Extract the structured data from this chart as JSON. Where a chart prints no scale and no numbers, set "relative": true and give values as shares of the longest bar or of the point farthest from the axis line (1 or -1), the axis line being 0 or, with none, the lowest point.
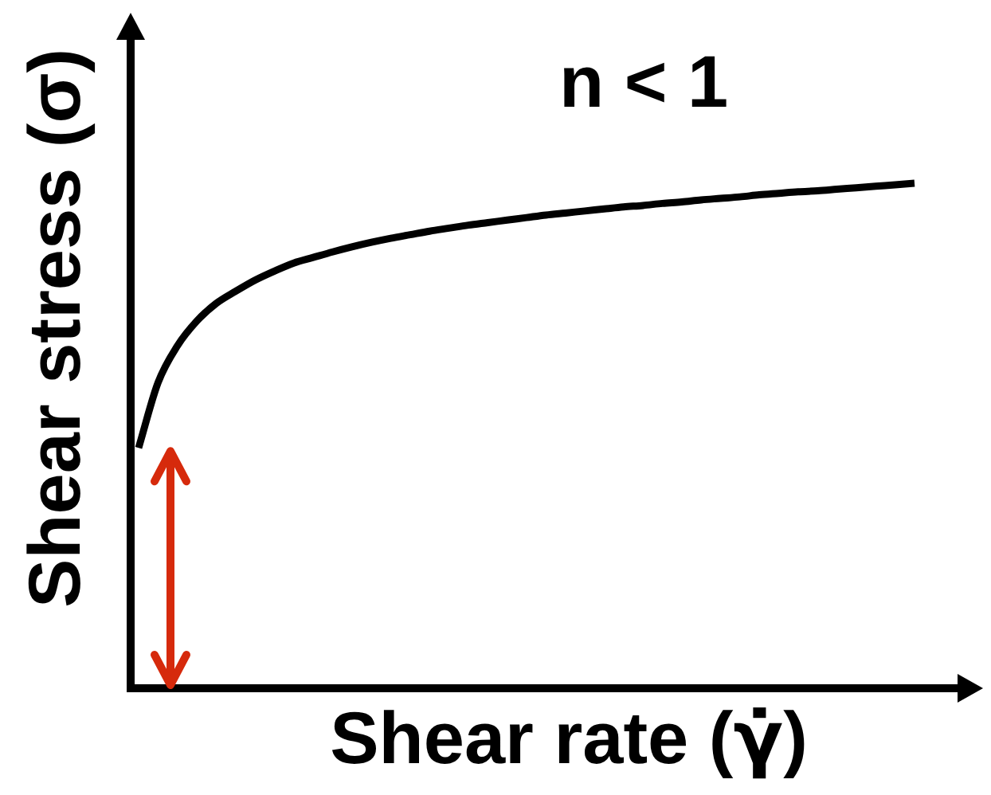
{
  "chart_data": {
    "type": "line",
    "xlabel": "Shear rate (γ̇)",
    "ylabel": "Shear stress (σ)",
    "annotations": [
      "n < 1"
    ],
    "relative": true,
    "marker": "none",
    "categories": [
      null,
      null,
      null,
      null,
      null,
      null,
      null,
      null,
      null,
      null,
      null,
      null,
      null,
      null,
      null,
      null,
      null,
      null,
      null,
      null,
      null,
      null,
      null,
      null,
      null,
      null,
      null,
      null,
      null,
      null,
      null,
      null,
      null,
      null,
      null,
      null,
      null,
      null,
      null,
      null,
      null
    ],
    "color": "#000000",
    "values": [
      0.476,
      0.605,
      0.678,
      0.727,
      0.762,
      0.786,
      0.808,
      0.826,
      0.842,
      0.853,
      0.864,
      0.874,
      0.883,
      0.891,
      0.898,
      0.905,
      0.911,
      0.917,
      0.922,
      0.927,
      0.932,
      0.937,
      0.941,
      0.945,
      0.949,
      0.953,
      0.956,
      0.96,
      0.963,
      0.967,
      0.97,
      0.973,
      0.977,
      0.98,
      0.983,
      0.985,
      0.988,
      0.991,
      0.994,
      0.997,
      1
    ]
  }
}
